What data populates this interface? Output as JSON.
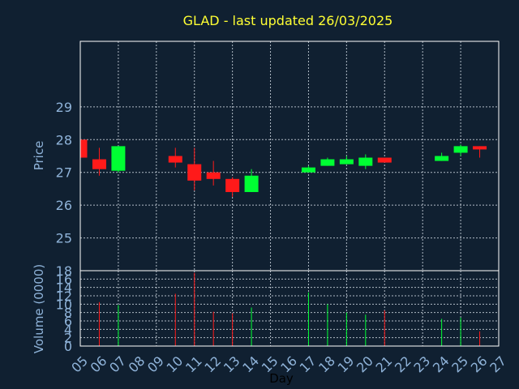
{
  "chart_data": {
    "type": "candlestick",
    "title": "GLAD - last updated 26/03/2025",
    "price_panel": {
      "ylabel": "Price",
      "ylim": [
        24.0,
        31.0
      ],
      "yticks": [
        25,
        26,
        27,
        28,
        29
      ]
    },
    "volume_panel": {
      "ylabel": "Volume (0000)",
      "ylim": [
        0,
        18
      ],
      "yticks": [
        0,
        2,
        4,
        6,
        8,
        10,
        12,
        14,
        16,
        18
      ]
    },
    "xlabel": "Day",
    "xlim": [
      5,
      27
    ],
    "xticks": [
      "05",
      "06",
      "07",
      "08",
      "09",
      "10",
      "11",
      "12",
      "13",
      "14",
      "15",
      "16",
      "17",
      "18",
      "19",
      "20",
      "21",
      "22",
      "23",
      "24",
      "25",
      "26",
      "27"
    ],
    "colors": {
      "up": "#00ff33",
      "down": "#ff1a1a"
    },
    "candles": [
      {
        "day": 5,
        "open": 28.0,
        "high": 28.0,
        "low": 27.45,
        "close": 27.45,
        "volume": 0
      },
      {
        "day": 6,
        "open": 27.4,
        "high": 27.75,
        "low": 26.9,
        "close": 27.1,
        "volume": 10.5
      },
      {
        "day": 7,
        "open": 27.05,
        "high": 27.8,
        "low": 27.0,
        "close": 27.8,
        "volume": 9.8
      },
      {
        "day": 10,
        "open": 27.5,
        "high": 27.75,
        "low": 27.15,
        "close": 27.3,
        "volume": 12.5
      },
      {
        "day": 11,
        "open": 27.25,
        "high": 27.75,
        "low": 26.45,
        "close": 26.75,
        "volume": 17.5
      },
      {
        "day": 12,
        "open": 27.0,
        "high": 27.35,
        "low": 26.6,
        "close": 26.8,
        "volume": 8.2
      },
      {
        "day": 13,
        "open": 26.8,
        "high": 26.85,
        "low": 26.25,
        "close": 26.4,
        "volume": 7.8
      },
      {
        "day": 14,
        "open": 26.4,
        "high": 27.1,
        "low": 26.4,
        "close": 26.9,
        "volume": 9.2
      },
      {
        "day": 17,
        "open": 27.0,
        "high": 27.2,
        "low": 27.0,
        "close": 27.15,
        "volume": 12.8
      },
      {
        "day": 18,
        "open": 27.2,
        "high": 27.45,
        "low": 27.2,
        "close": 27.4,
        "volume": 10.0
      },
      {
        "day": 19,
        "open": 27.25,
        "high": 27.5,
        "low": 27.25,
        "close": 27.4,
        "volume": 8.0
      },
      {
        "day": 20,
        "open": 27.2,
        "high": 27.55,
        "low": 27.1,
        "close": 27.45,
        "volume": 7.5
      },
      {
        "day": 21,
        "open": 27.45,
        "high": 27.45,
        "low": 27.3,
        "close": 27.3,
        "volume": 8.5
      },
      {
        "day": 24,
        "open": 27.35,
        "high": 27.6,
        "low": 27.35,
        "close": 27.5,
        "volume": 6.5
      },
      {
        "day": 25,
        "open": 27.6,
        "high": 27.85,
        "low": 27.5,
        "close": 27.8,
        "volume": 6.8
      },
      {
        "day": 26,
        "open": 27.8,
        "high": 27.8,
        "low": 27.45,
        "close": 27.7,
        "volume": 3.5
      }
    ]
  }
}
